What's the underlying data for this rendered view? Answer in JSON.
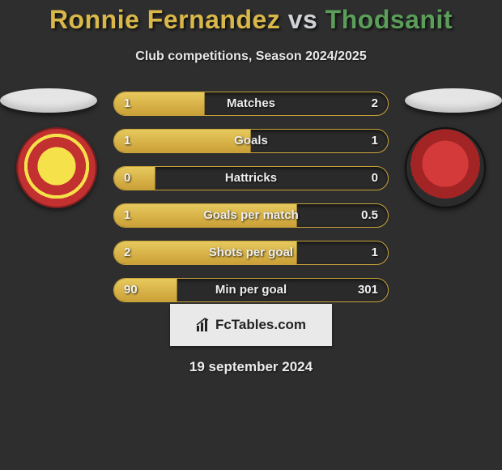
{
  "header": {
    "player1": "Ronnie Fernandez",
    "vs": "vs",
    "player2": "Thodsanit",
    "subtitle": "Club competitions, Season 2024/2025",
    "colors": {
      "p1": "#d9b84a",
      "vs": "#cfd3d7",
      "p2": "#5a9e5a"
    }
  },
  "bars": {
    "track_border": "#c9a33a",
    "fill_gradient": [
      "#e7c95d",
      "#caa037"
    ],
    "items": [
      {
        "label": "Matches",
        "left": "1",
        "right": "2",
        "fill_pct": 33
      },
      {
        "label": "Goals",
        "left": "1",
        "right": "1",
        "fill_pct": 50
      },
      {
        "label": "Hattricks",
        "left": "0",
        "right": "0",
        "fill_pct": 15
      },
      {
        "label": "Goals per match",
        "left": "1",
        "right": "0.5",
        "fill_pct": 67
      },
      {
        "label": "Shots per goal",
        "left": "2",
        "right": "1",
        "fill_pct": 67
      },
      {
        "label": "Min per goal",
        "left": "90",
        "right": "301",
        "fill_pct": 23
      }
    ]
  },
  "brand": {
    "text": "FcTables.com"
  },
  "date": "19 september 2024"
}
